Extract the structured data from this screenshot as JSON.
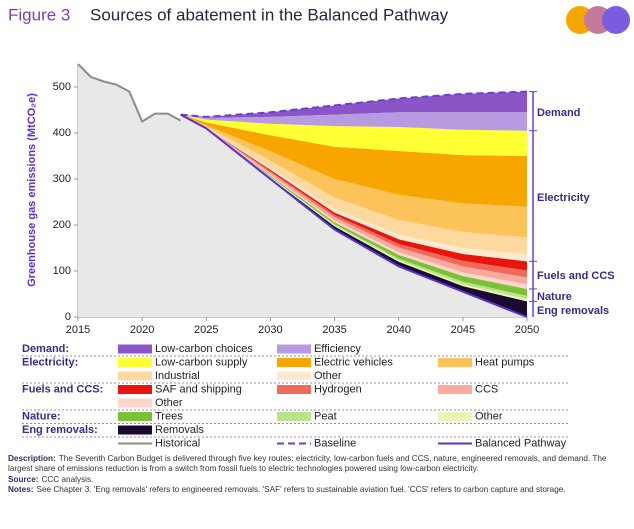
{
  "chart_data": {
    "type": "area",
    "title_prefix": "Figure 3",
    "title": "Sources of abatement in the Balanced Pathway",
    "y_label": "Greenhouse gas emissions (MtCO₂e)",
    "xlim": [
      2015,
      2050
    ],
    "xticks": [
      2015,
      2020,
      2025,
      2030,
      2035,
      2040,
      2045,
      2050
    ],
    "ylim": [
      0,
      550
    ],
    "yticks": [
      0,
      100,
      200,
      300,
      400,
      500
    ],
    "x": [
      2023,
      2025,
      2030,
      2035,
      2040,
      2045,
      2050
    ],
    "groups": [
      {
        "name": "Demand:",
        "label": "Demand",
        "series": [
          {
            "name": "Low-carbon choices",
            "color": "#8b55c7",
            "values": [
              0,
              2,
              10,
              20,
              30,
              40,
              45
            ]
          },
          {
            "name": "Efficiency",
            "color": "#b79be0",
            "values": [
              0,
              4,
              15,
              25,
              32,
              38,
              40
            ]
          }
        ]
      },
      {
        "name": "Electricity:",
        "label": "Electricity",
        "series": [
          {
            "name": "Low-carbon supply",
            "color": "#ffff33",
            "values": [
              0,
              6,
              25,
              45,
              52,
              55,
              55
            ]
          },
          {
            "name": "Electric vehicles",
            "color": "#f7a600",
            "values": [
              0,
              6,
              35,
              70,
              95,
              105,
              110
            ]
          },
          {
            "name": "Heat pumps",
            "color": "#fcc35a",
            "values": [
              0,
              3,
              20,
              40,
              55,
              62,
              67
            ]
          },
          {
            "name": "Industrial",
            "color": "#fdd9a0",
            "values": [
              0,
              2,
              15,
              25,
              32,
              35,
              37
            ]
          },
          {
            "name": "Other",
            "color": "#fde9cf",
            "values": [
              0,
              1,
              5,
              8,
              10,
              13,
              15
            ]
          }
        ]
      },
      {
        "name": "Fuels and CCS:",
        "label": "Fuels and CCS",
        "series": [
          {
            "name": "SAF and shipping",
            "color": "#e8150e",
            "values": [
              0,
              0,
              3,
              5,
              10,
              15,
              20
            ]
          },
          {
            "name": "Hydrogen",
            "color": "#f06a5a",
            "values": [
              0,
              0,
              3,
              5,
              8,
              12,
              15
            ]
          },
          {
            "name": "CCS",
            "color": "#f9a99d",
            "values": [
              0,
              1,
              5,
              7,
              10,
              13,
              15
            ]
          },
          {
            "name": "Other",
            "color": "#fcd5cd",
            "values": [
              0,
              0,
              2,
              4,
              6,
              8,
              10
            ]
          }
        ]
      },
      {
        "name": "Nature:",
        "label": "Nature",
        "series": [
          {
            "name": "Trees",
            "color": "#7ac133",
            "values": [
              0,
              0,
              2,
              4,
              8,
              12,
              15
            ]
          },
          {
            "name": "Peat",
            "color": "#b9e48a",
            "values": [
              0,
              0,
              2,
              3,
              4,
              6,
              7
            ]
          },
          {
            "name": "Other",
            "color": "#e7f5b7",
            "values": [
              0,
              0,
              1,
              2,
              3,
              4,
              5
            ]
          }
        ]
      },
      {
        "name": "Eng removals:",
        "label": "Eng removals",
        "series": [
          {
            "name": "Removals",
            "color": "#1a0a2e",
            "values": [
              0,
              0,
              2,
              7,
              10,
              12,
              34
            ]
          }
        ]
      }
    ],
    "lines": [
      {
        "name": "Historical",
        "color": "#8c8c8c",
        "x": [
          2015,
          2016,
          2017,
          2018,
          2019,
          2020,
          2021,
          2022,
          2023
        ],
        "values": [
          550,
          522,
          512,
          505,
          490,
          425,
          442,
          442,
          427
        ]
      },
      {
        "name": "Baseline",
        "color": "#6c3fd3",
        "dashed": true,
        "values": [
          440,
          435,
          445,
          460,
          475,
          485,
          490
        ]
      },
      {
        "name": "Balanced Pathway",
        "color": "#5b2fd9",
        "values": [
          440,
          410,
          300,
          190,
          110,
          55,
          0
        ]
      }
    ],
    "notes": [
      {
        "label": "Description:",
        "text": "The Seventh Carbon Budget is delivered through five key routes: electricity, low-carbon fuels and CCS, nature, engineered removals, and demand. The largest share of emissions reduction is from a switch from fossil fuels to electric technologies powered using low-carbon electricity."
      },
      {
        "label": "Source:",
        "text": "CCC analysis."
      },
      {
        "label": "Notes:",
        "text": "See Chapter 3. 'Eng removals' refers to engineered removals. 'SAF' refers to sustainable aviation fuel. 'CCS' refers to carbon capture and storage."
      }
    ]
  }
}
